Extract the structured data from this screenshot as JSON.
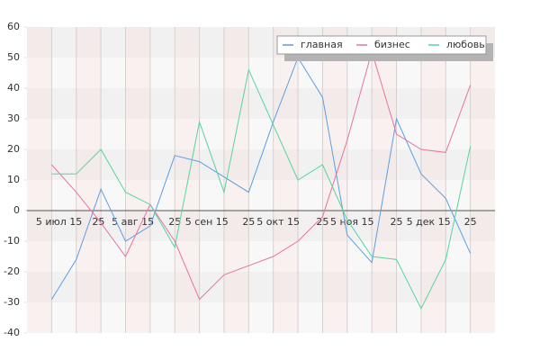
{
  "chart_data": {
    "type": "line",
    "x": [
      0,
      1,
      2,
      3,
      4,
      5,
      6,
      7,
      8,
      9,
      10,
      11,
      12,
      13,
      14,
      15,
      16,
      17
    ],
    "xlim": [
      -1,
      18
    ],
    "xticks": [
      {
        "value": 0.3,
        "label": "5 июл 15"
      },
      {
        "value": 1.9,
        "label": "25"
      },
      {
        "value": 3.3,
        "label": "5 авг 15"
      },
      {
        "value": 5.0,
        "label": "25"
      },
      {
        "value": 6.3,
        "label": "5 сен 15"
      },
      {
        "value": 8.0,
        "label": "25"
      },
      {
        "value": 9.2,
        "label": "5 окт 15"
      },
      {
        "value": 11.0,
        "label": "25"
      },
      {
        "value": 12.2,
        "label": "5 ноя 15"
      },
      {
        "value": 14.0,
        "label": "25"
      },
      {
        "value": 15.3,
        "label": "5 дек 15"
      },
      {
        "value": 17.0,
        "label": "25"
      }
    ],
    "ylim": [
      -40,
      60
    ],
    "yticks": [
      -40,
      -30,
      -20,
      -10,
      0,
      10,
      20,
      30,
      40,
      50,
      60
    ],
    "grid": true,
    "legend": "top-right",
    "series": [
      {
        "name": "главная",
        "color": "#5b9ee6",
        "values": [
          -29,
          -16,
          7,
          -10,
          -5,
          18,
          16,
          11,
          6,
          29,
          50,
          37,
          -8,
          -17,
          30,
          12,
          4,
          -14
        ]
      },
      {
        "name": "бизнес",
        "color": "#e8739f",
        "values": [
          15,
          6,
          -4,
          -15,
          2,
          -10,
          -29,
          -21,
          -18,
          -15,
          -10,
          -2,
          23,
          52,
          25,
          20,
          19,
          41
        ]
      },
      {
        "name": "любовь",
        "color": "#55d69c",
        "values": [
          12,
          12,
          20,
          6,
          2,
          -12,
          29,
          6,
          46,
          28,
          10,
          15,
          -3,
          -15,
          -16,
          -32,
          -16,
          21
        ]
      }
    ]
  }
}
